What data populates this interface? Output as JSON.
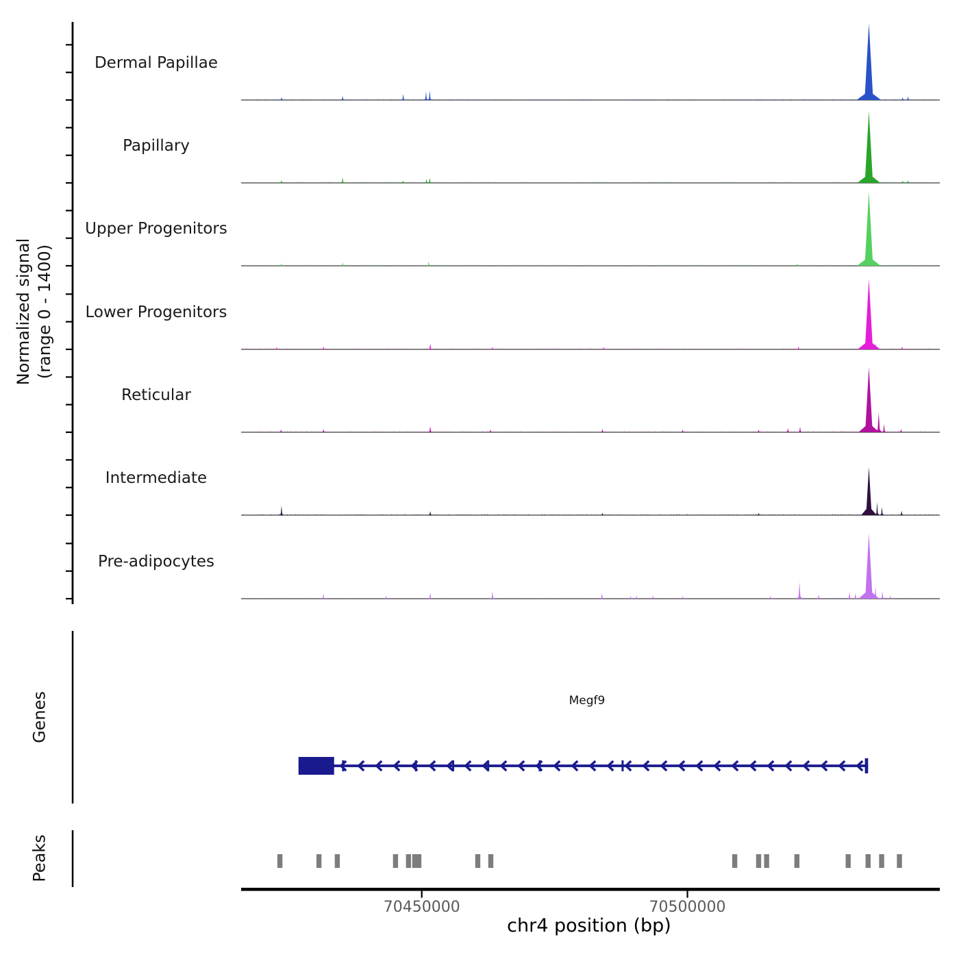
{
  "figure": {
    "y_axis_label_line1": "Normalized signal",
    "y_axis_label_line2": "(range 0 - 1400)",
    "genes_section_label": "Genes",
    "peaks_section_label": "Peaks",
    "x_axis_title": "chr4 position (bp)"
  },
  "colors": {
    "background": "#ffffff",
    "axis": "#000000",
    "track_baseline": "#777777",
    "tick_label_gray": "#5a5a5a",
    "gene_navy": "#1a1a8f",
    "peak_box_gray": "#7d7d7d"
  },
  "chart_data": {
    "type": "area",
    "subtype": "genome-browser-signal-tracks",
    "chromosome": "chr4",
    "x_range_bp": [
      70416000,
      70547500
    ],
    "x_ticks": [
      {
        "pos": 70450000,
        "label": "70450000"
      },
      {
        "pos": 70500000,
        "label": "70500000"
      }
    ],
    "xlabel": "chr4 position (bp)",
    "ylabel": "Normalized signal (range 0 - 1400)",
    "signal_range": [
      0,
      1400
    ],
    "grid": false,
    "legend": "track names at left of each row",
    "tracks": [
      {
        "name": "Dermal Papillae",
        "color": "#2a52c8",
        "peaks": [
          [
            70423600,
            50
          ],
          [
            70435100,
            75
          ],
          [
            70446500,
            110
          ],
          [
            70450800,
            150
          ],
          [
            70451500,
            175
          ],
          [
            70534150,
            1390
          ],
          [
            70540500,
            50
          ],
          [
            70541500,
            65
          ]
        ]
      },
      {
        "name": "Papillary",
        "color": "#2aa42a",
        "peaks": [
          [
            70423600,
            50
          ],
          [
            70435100,
            100
          ],
          [
            70446500,
            40
          ],
          [
            70450900,
            75
          ],
          [
            70451500,
            90
          ],
          [
            70534150,
            1300
          ],
          [
            70540500,
            40
          ],
          [
            70541500,
            50
          ]
        ]
      },
      {
        "name": "Upper Progenitors",
        "color": "#55d060",
        "peaks": [
          [
            70423600,
            45
          ],
          [
            70435100,
            60
          ],
          [
            70451300,
            75
          ],
          [
            70520700,
            40
          ],
          [
            70534150,
            1340
          ]
        ]
      },
      {
        "name": "Lower Progenitors",
        "color": "#e41ed8",
        "peaks": [
          [
            70422700,
            40
          ],
          [
            70431500,
            50
          ],
          [
            70451600,
            110
          ],
          [
            70463300,
            40
          ],
          [
            70484200,
            40
          ],
          [
            70520900,
            50
          ],
          [
            70534150,
            1270
          ],
          [
            70535400,
            110
          ],
          [
            70540400,
            50
          ]
        ]
      },
      {
        "name": "Reticular",
        "color": "#b0119e",
        "peaks": [
          [
            70423500,
            50
          ],
          [
            70431500,
            60
          ],
          [
            70451600,
            110
          ],
          [
            70462900,
            50
          ],
          [
            70484000,
            60
          ],
          [
            70499100,
            50
          ],
          [
            70513400,
            50
          ],
          [
            70518900,
            75
          ],
          [
            70521200,
            100
          ],
          [
            70534150,
            1180
          ],
          [
            70536000,
            360
          ],
          [
            70537000,
            150
          ],
          [
            70540200,
            60
          ]
        ]
      },
      {
        "name": "Intermediate",
        "color": "#2e1140",
        "peaks": [
          [
            70423600,
            175
          ],
          [
            70451600,
            75
          ],
          [
            70484000,
            40
          ],
          [
            70513400,
            40
          ],
          [
            70534150,
            870
          ],
          [
            70535700,
            240
          ],
          [
            70536600,
            150
          ],
          [
            70540300,
            80
          ]
        ]
      },
      {
        "name": "Pre-adipocytes",
        "color": "#c272ef",
        "peaks": [
          [
            70431500,
            90
          ],
          [
            70443300,
            50
          ],
          [
            70451600,
            110
          ],
          [
            70463300,
            135
          ],
          [
            70483900,
            100
          ],
          [
            70489300,
            50
          ],
          [
            70490400,
            50
          ],
          [
            70493500,
            60
          ],
          [
            70499100,
            50
          ],
          [
            70515600,
            50
          ],
          [
            70521100,
            300
          ],
          [
            70524700,
            75
          ],
          [
            70530500,
            125
          ],
          [
            70531600,
            100
          ],
          [
            70534150,
            1180
          ],
          [
            70535400,
            220
          ],
          [
            70536700,
            135
          ],
          [
            70538200,
            55
          ]
        ]
      }
    ],
    "gene": {
      "name": "Megf9",
      "strand": "-",
      "start_bp": 70426800,
      "end_bp": 70534000,
      "utr_box_bp": [
        70426800,
        70433500
      ],
      "exon_ticks_bp": [
        70435200,
        70448900,
        70455900,
        70462500,
        70472200,
        70487800
      ],
      "end_exon_bp": [
        70533400,
        70534000
      ]
    },
    "peak_boxes_bp": [
      70423300,
      70430650,
      70434100,
      70445060,
      70447500,
      70448680,
      70449450,
      70460540,
      70462990,
      70508900,
      70513400,
      70514900,
      70520600,
      70530250,
      70534000,
      70536550,
      70539900
    ]
  }
}
